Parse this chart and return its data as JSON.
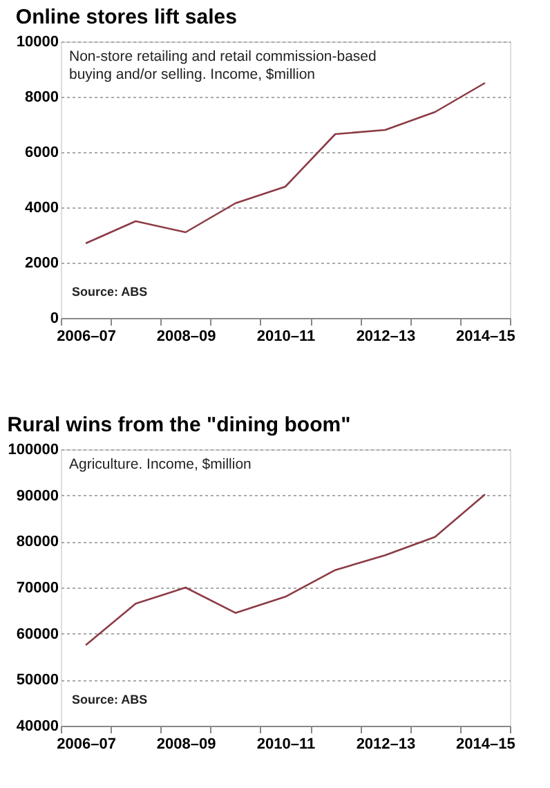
{
  "chart_data": [
    {
      "type": "line",
      "title": "Online stores lift sales",
      "subtitle": "Non-store retailing and retail commission-based buying and/or selling. Income, $million",
      "annotations": [
        "Source: ABS"
      ],
      "categories": [
        "2006–07",
        null,
        "2008–09",
        null,
        "2010–11",
        null,
        "2012–13",
        null,
        "2014–15"
      ],
      "series": [
        {
          "color": "#8c3b45",
          "values": [
            2700,
            3500,
            3100,
            4150,
            4750,
            6650,
            6800,
            7450,
            8500
          ]
        }
      ],
      "ylim": [
        0,
        10000
      ],
      "yticks": [
        0,
        2000,
        4000,
        6000,
        8000,
        10000
      ],
      "grid": "y",
      "marker": "none",
      "line_style": "solid"
    },
    {
      "type": "line",
      "title": "Rural wins from the \"dining boom\"",
      "subtitle": "Agriculture. Income, $million",
      "annotations": [
        "Source: ABS"
      ],
      "categories": [
        "2006–07",
        null,
        "2008–09",
        null,
        "2010–11",
        null,
        "2012–13",
        null,
        "2014–15"
      ],
      "series": [
        {
          "color": "#8c3b45",
          "values": [
            57500,
            66500,
            70000,
            64500,
            68000,
            73800,
            77000,
            81000,
            90200
          ]
        }
      ],
      "ylim": [
        40000,
        100000
      ],
      "yticks": [
        40000,
        50000,
        60000,
        70000,
        80000,
        90000,
        100000
      ],
      "grid": "y",
      "marker": "none",
      "line_style": "solid"
    }
  ]
}
